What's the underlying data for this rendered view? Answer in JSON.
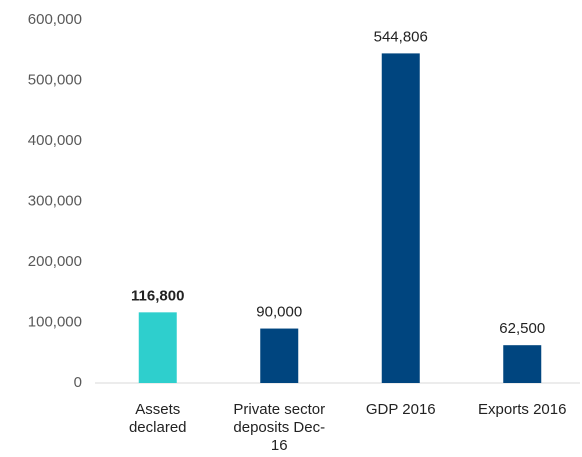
{
  "chart_data": {
    "type": "bar",
    "categories": [
      "Assets declared",
      "Private sector deposits Dec-16",
      "GDP 2016",
      "Exports 2016"
    ],
    "values": [
      116800,
      90000,
      544806,
      62500
    ],
    "value_labels": [
      "116,800",
      "90,000",
      "544,806",
      "62,500"
    ],
    "colors": [
      "#2ecfcd",
      "#00457f",
      "#00457f",
      "#00457f"
    ],
    "ylim": [
      0,
      600000
    ],
    "yticks": [
      0,
      {
        "value": 100000,
        "label": "100,000"
      },
      {
        "value": 200000,
        "label": "200,000"
      },
      {
        "value": 300000,
        "label": "300,000"
      },
      {
        "value": 400000,
        "label": "400,000"
      },
      {
        "value": 500000,
        "label": "500,000"
      },
      {
        "value": 600000,
        "label": "600,000"
      }
    ],
    "grid": false
  }
}
